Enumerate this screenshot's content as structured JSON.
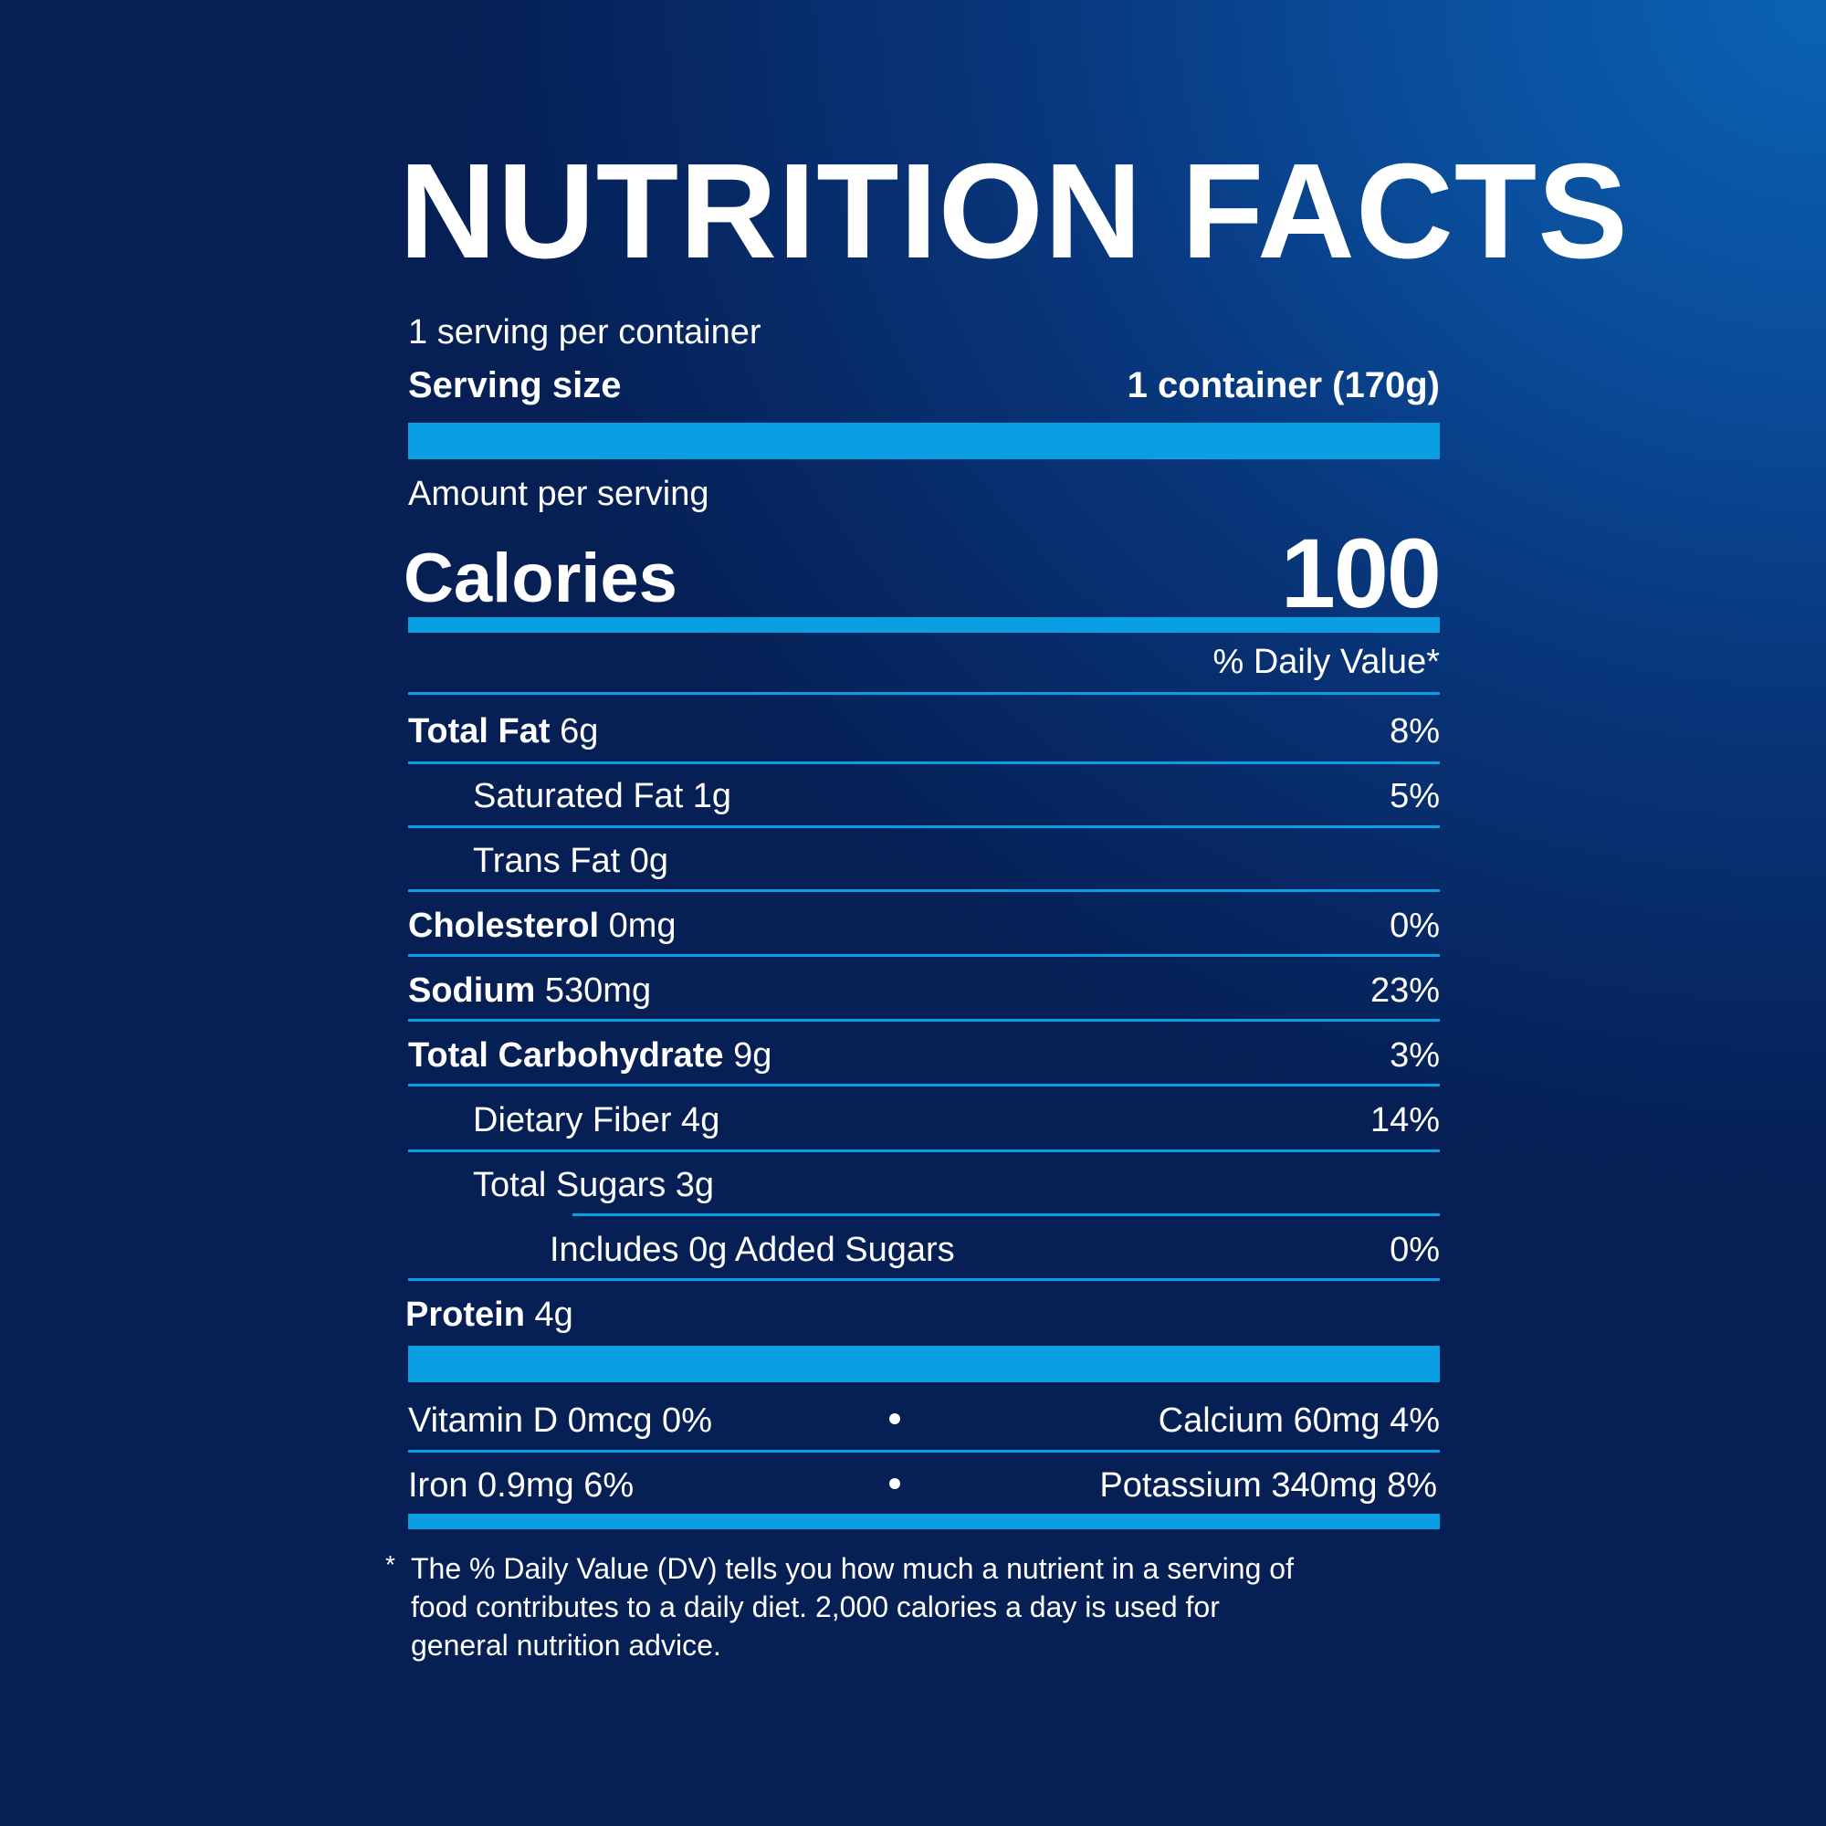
{
  "label": {
    "title": "NUTRITION FACTS",
    "servings_per_container": "1 serving per container",
    "serving_size_label": "Serving size",
    "serving_size_value": "1 container (170g)",
    "amount_per_serving": "Amount per serving",
    "calories_label": "Calories",
    "calories_value": "100",
    "daily_value_header": "% Daily Value*"
  },
  "nutrients": [
    {
      "name": "Total Fat",
      "amount": "6g",
      "dv": "8%"
    },
    {
      "name": "Saturated Fat 1g",
      "amount": "",
      "dv": "5%"
    },
    {
      "name": "Trans Fat 0g",
      "amount": "",
      "dv": ""
    },
    {
      "name": "Cholesterol",
      "amount": "0mg",
      "dv": "0%"
    },
    {
      "name": "Sodium",
      "amount": "530mg",
      "dv": "23%"
    },
    {
      "name": "Total Carbohydrate",
      "amount": "9g",
      "dv": "3%"
    },
    {
      "name": "Dietary Fiber 4g",
      "amount": "",
      "dv": "14%"
    },
    {
      "name": "Total Sugars 3g",
      "amount": "",
      "dv": ""
    },
    {
      "name": "Includes 0g Added Sugars",
      "amount": "",
      "dv": "0%"
    },
    {
      "name": "Protein",
      "amount": "4g",
      "dv": ""
    }
  ],
  "vitamins": {
    "vitamin_d": "Vitamin D 0mcg 0%",
    "calcium": "Calcium 60mg 4%",
    "iron": "Iron 0.9mg 6%",
    "potassium": "Potassium 340mg 8%"
  },
  "footnote": {
    "marker": "*",
    "line1": "The % Daily Value (DV) tells you how much a nutrient in a serving of",
    "line2": "food contributes to a daily diet. 2,000 calories a day is used for",
    "line3": "general nutrition advice."
  },
  "colors": {
    "background_dark": "#061f55",
    "background_light": "#0b62b4",
    "rule": "#0a9fe2",
    "text": "#ffffff"
  }
}
